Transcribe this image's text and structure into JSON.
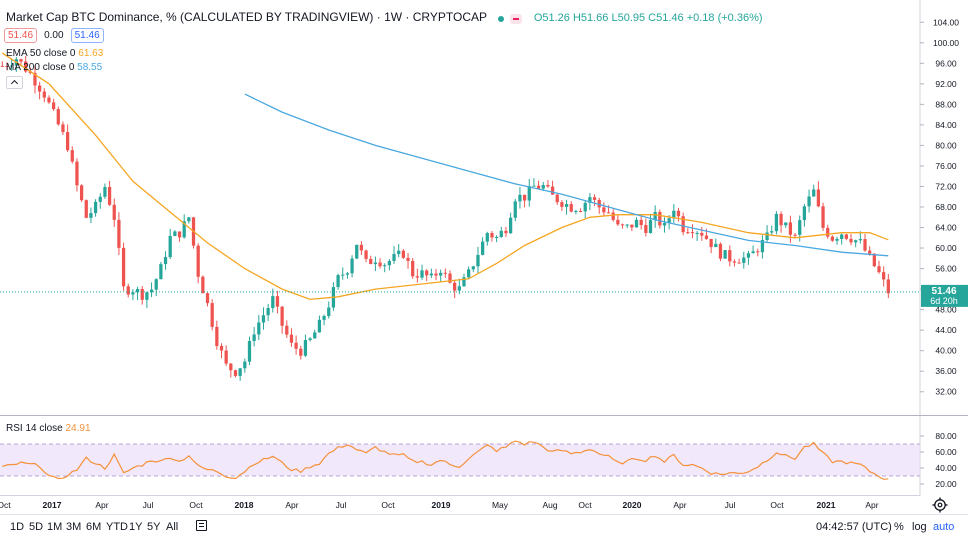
{
  "header": {
    "title": "Market Cap BTC Dominance, % (CALCULATED BY TRADINGVIEW) · 1W · CRYPTOCAP",
    "ohlc": "O51.26 H51.66 L50.95 C51.46 +0.18 (+0.36%)",
    "bid": "51.46",
    "spread": "0.00",
    "ask": "51.46"
  },
  "indicators": {
    "ema_label": "EMA 50 close 0",
    "ema_value": "61.63",
    "ma_label": "MA 200 close 0",
    "ma_value": "58.55",
    "rsi_label": "RSI 14 close",
    "rsi_value": "24.91"
  },
  "price_axis": {
    "ticks": [
      "104.00",
      "100.00",
      "96.00",
      "92.00",
      "88.00",
      "84.00",
      "80.00",
      "76.00",
      "72.00",
      "68.00",
      "64.00",
      "60.00",
      "56.00",
      "52.00",
      "48.00",
      "44.00",
      "40.00",
      "36.00",
      "32.00"
    ],
    "last_price": "51.46",
    "countdown": "6d 20h"
  },
  "rsi_axis": {
    "ticks": [
      "80.00",
      "60.00",
      "40.00",
      "20.00"
    ]
  },
  "time_axis": [
    "Oct",
    "2017",
    "Apr",
    "Jul",
    "Oct",
    "2018",
    "Apr",
    "Jul",
    "Oct",
    "2019",
    "May",
    "Aug",
    "Oct",
    "2020",
    "Apr",
    "Jul",
    "Oct",
    "2021",
    "Apr"
  ],
  "timeframes": [
    "1D",
    "5D",
    "1M",
    "3M",
    "6M",
    "YTD",
    "1Y",
    "5Y",
    "All"
  ],
  "clock": "04:42:57 (UTC)",
  "scale_options": [
    "%",
    "log",
    "auto"
  ],
  "colors": {
    "up": "#26a69a",
    "down": "#ef5350",
    "ema": "#f5a623",
    "ma": "#4aa8e0",
    "rsi": "#f4913b",
    "rsi_band": "#ede0fa",
    "accent": "#2962ff"
  },
  "chart_data": {
    "type": "candlestick",
    "title": "Market Cap BTC Dominance, % (CALCULATED BY TRADINGVIEW)",
    "interval": "1W",
    "ylim": [
      30,
      106
    ],
    "rsi_ylim": [
      10,
      90
    ],
    "rsi_levels": [
      70,
      30
    ],
    "anchors": [
      [
        0,
        95.5
      ],
      [
        3,
        97
      ],
      [
        6,
        94
      ],
      [
        9,
        90
      ],
      [
        12,
        84
      ],
      [
        14,
        80
      ],
      [
        16,
        72
      ],
      [
        18,
        66
      ],
      [
        20,
        68
      ],
      [
        22,
        72
      ],
      [
        24,
        66
      ],
      [
        26,
        52
      ],
      [
        28,
        52
      ],
      [
        30,
        51
      ],
      [
        32,
        52
      ],
      [
        34,
        56
      ],
      [
        36,
        62
      ],
      [
        38,
        63
      ],
      [
        40,
        66
      ],
      [
        42,
        55
      ],
      [
        44,
        49
      ],
      [
        46,
        42
      ],
      [
        48,
        37
      ],
      [
        50,
        36
      ],
      [
        52,
        38
      ],
      [
        54,
        44
      ],
      [
        56,
        47
      ],
      [
        58,
        50
      ],
      [
        60,
        45
      ],
      [
        62,
        41
      ],
      [
        64,
        40
      ],
      [
        66,
        42
      ],
      [
        68,
        45
      ],
      [
        70,
        49
      ],
      [
        72,
        54
      ],
      [
        74,
        56
      ],
      [
        76,
        61
      ],
      [
        78,
        57
      ],
      [
        80,
        58
      ],
      [
        82,
        57
      ],
      [
        84,
        58
      ],
      [
        86,
        59
      ],
      [
        88,
        55
      ],
      [
        90,
        55
      ],
      [
        92,
        54
      ],
      [
        94,
        56
      ],
      [
        96,
        53
      ],
      [
        98,
        52
      ],
      [
        100,
        55
      ],
      [
        102,
        59
      ],
      [
        104,
        63
      ],
      [
        106,
        62
      ],
      [
        108,
        64
      ],
      [
        110,
        70
      ],
      [
        112,
        70
      ],
      [
        114,
        72
      ],
      [
        116,
        72
      ],
      [
        118,
        70
      ],
      [
        120,
        69
      ],
      [
        122,
        68
      ],
      [
        124,
        68
      ],
      [
        126,
        70
      ],
      [
        128,
        68
      ],
      [
        130,
        67
      ],
      [
        132,
        64
      ],
      [
        134,
        64
      ],
      [
        136,
        65
      ],
      [
        138,
        64
      ],
      [
        140,
        66
      ],
      [
        142,
        64
      ],
      [
        144,
        68
      ],
      [
        146,
        64
      ],
      [
        148,
        64
      ],
      [
        150,
        63
      ],
      [
        152,
        61
      ],
      [
        154,
        59
      ],
      [
        156,
        58
      ],
      [
        158,
        58
      ],
      [
        160,
        58
      ],
      [
        162,
        60
      ],
      [
        164,
        62
      ],
      [
        166,
        66
      ],
      [
        168,
        64
      ],
      [
        170,
        62
      ],
      [
        172,
        68
      ],
      [
        174,
        71
      ],
      [
        176,
        64
      ],
      [
        178,
        62
      ],
      [
        180,
        63
      ],
      [
        182,
        62
      ],
      [
        184,
        61
      ],
      [
        186,
        58
      ],
      [
        188,
        55
      ],
      [
        190,
        51.5
      ]
    ],
    "ema50": [
      [
        0,
        98
      ],
      [
        10,
        92
      ],
      [
        20,
        82
      ],
      [
        28,
        73
      ],
      [
        36,
        67
      ],
      [
        44,
        61
      ],
      [
        52,
        56
      ],
      [
        60,
        52
      ],
      [
        66,
        50
      ],
      [
        72,
        50.5
      ],
      [
        80,
        52
      ],
      [
        90,
        53
      ],
      [
        100,
        54
      ],
      [
        106,
        57
      ],
      [
        112,
        60.5
      ],
      [
        120,
        64
      ],
      [
        126,
        66
      ],
      [
        132,
        66.5
      ],
      [
        140,
        66.5
      ],
      [
        150,
        65
      ],
      [
        160,
        63
      ],
      [
        170,
        62
      ],
      [
        180,
        63
      ],
      [
        186,
        63
      ],
      [
        190,
        61.6
      ]
    ],
    "ma200": [
      [
        52,
        90
      ],
      [
        60,
        86.5
      ],
      [
        70,
        83
      ],
      [
        80,
        80
      ],
      [
        90,
        77.5
      ],
      [
        100,
        75
      ],
      [
        110,
        72.5
      ],
      [
        120,
        70.5
      ],
      [
        130,
        68
      ],
      [
        140,
        65.5
      ],
      [
        150,
        63.5
      ],
      [
        160,
        61.5
      ],
      [
        170,
        60.5
      ],
      [
        180,
        59.2
      ],
      [
        190,
        58.5
      ]
    ],
    "rsi": [
      [
        0,
        41
      ],
      [
        4,
        46
      ],
      [
        8,
        43
      ],
      [
        10,
        30
      ],
      [
        12,
        25
      ],
      [
        16,
        38
      ],
      [
        18,
        52
      ],
      [
        20,
        46
      ],
      [
        22,
        40
      ],
      [
        24,
        56
      ],
      [
        26,
        33
      ],
      [
        28,
        40
      ],
      [
        30,
        44
      ],
      [
        32,
        50
      ],
      [
        34,
        48
      ],
      [
        36,
        54
      ],
      [
        38,
        48
      ],
      [
        40,
        56
      ],
      [
        42,
        42
      ],
      [
        44,
        38
      ],
      [
        46,
        36
      ],
      [
        48,
        30
      ],
      [
        50,
        28
      ],
      [
        52,
        36
      ],
      [
        54,
        46
      ],
      [
        56,
        50
      ],
      [
        58,
        55
      ],
      [
        60,
        46
      ],
      [
        62,
        38
      ],
      [
        64,
        36
      ],
      [
        66,
        42
      ],
      [
        68,
        46
      ],
      [
        70,
        58
      ],
      [
        72,
        65
      ],
      [
        74,
        70
      ],
      [
        76,
        63
      ],
      [
        78,
        58
      ],
      [
        80,
        66
      ],
      [
        82,
        60
      ],
      [
        84,
        56
      ],
      [
        86,
        56
      ],
      [
        88,
        48
      ],
      [
        90,
        48
      ],
      [
        92,
        44
      ],
      [
        94,
        50
      ],
      [
        96,
        44
      ],
      [
        98,
        42
      ],
      [
        100,
        52
      ],
      [
        102,
        60
      ],
      [
        104,
        68
      ],
      [
        106,
        62
      ],
      [
        108,
        66
      ],
      [
        110,
        74
      ],
      [
        112,
        70
      ],
      [
        114,
        73
      ],
      [
        116,
        66
      ],
      [
        118,
        60
      ],
      [
        120,
        62
      ],
      [
        122,
        58
      ],
      [
        124,
        60
      ],
      [
        126,
        64
      ],
      [
        128,
        58
      ],
      [
        130,
        54
      ],
      [
        132,
        46
      ],
      [
        134,
        48
      ],
      [
        136,
        52
      ],
      [
        138,
        50
      ],
      [
        140,
        56
      ],
      [
        142,
        48
      ],
      [
        144,
        56
      ],
      [
        146,
        44
      ],
      [
        148,
        44
      ],
      [
        150,
        40
      ],
      [
        152,
        34
      ],
      [
        154,
        32
      ],
      [
        156,
        34
      ],
      [
        158,
        33
      ],
      [
        160,
        36
      ],
      [
        162,
        42
      ],
      [
        164,
        50
      ],
      [
        166,
        60
      ],
      [
        168,
        55
      ],
      [
        170,
        52
      ],
      [
        172,
        66
      ],
      [
        174,
        70
      ],
      [
        176,
        58
      ],
      [
        178,
        48
      ],
      [
        180,
        48
      ],
      [
        182,
        46
      ],
      [
        184,
        44
      ],
      [
        186,
        36
      ],
      [
        188,
        30
      ],
      [
        190,
        25
      ]
    ]
  }
}
